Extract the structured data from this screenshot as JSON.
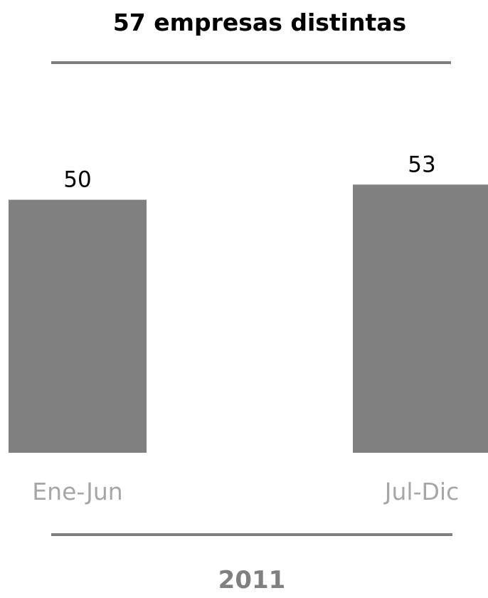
{
  "chart_data": {
    "type": "bar",
    "title": "57 empresas distintas",
    "categories": [
      "Ene-Jun",
      "Jul-Dic"
    ],
    "values": [
      50,
      53
    ],
    "data_labels": [
      "50",
      "53"
    ],
    "xlabel": "2011",
    "ylabel": "",
    "ylim": [
      0,
      74
    ],
    "grid": false,
    "legend": "none"
  },
  "colors": {
    "bar": "#808080",
    "rule": "#7f7f7f",
    "title": "#000000",
    "data_label": "#000000",
    "category_label": "#a6a6a6",
    "xlabel": "#808080"
  }
}
